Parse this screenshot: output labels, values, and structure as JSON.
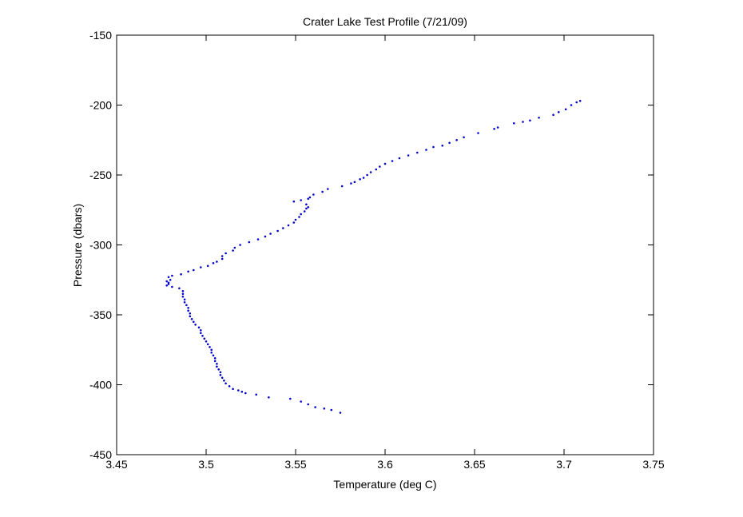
{
  "chart_data": {
    "type": "scatter",
    "title": "Crater Lake Test Profile (7/21/09)",
    "xlabel": "Temperature (deg C)",
    "ylabel": "Pressure (dbars)",
    "xlim": [
      3.45,
      3.75
    ],
    "ylim": [
      -450,
      -150
    ],
    "xticks": [
      "3.45",
      "3.5",
      "3.55",
      "3.6",
      "3.65",
      "3.7",
      "3.75"
    ],
    "yticks": [
      "-150",
      "-200",
      "-250",
      "-300",
      "-350",
      "-400",
      "-450"
    ],
    "grid": false,
    "marker_color": "#0000cc",
    "series": [
      {
        "x": [
          3.709,
          3.707,
          3.704,
          3.701,
          3.697,
          3.694,
          3.686,
          3.681,
          3.677,
          3.672,
          3.663,
          3.661,
          3.652,
          3.644,
          3.64,
          3.636,
          3.632,
          3.627,
          3.623,
          3.618,
          3.613,
          3.608,
          3.604,
          3.6,
          3.597,
          3.595,
          3.592,
          3.59,
          3.588,
          3.586,
          3.583,
          3.581,
          3.576,
          3.568,
          3.565,
          3.56,
          3.558,
          3.557,
          3.553,
          3.549,
          3.556,
          3.557,
          3.556,
          3.555,
          3.553,
          3.552,
          3.55,
          3.549,
          3.546,
          3.543,
          3.54,
          3.536,
          3.533,
          3.529,
          3.524,
          3.519,
          3.516,
          3.515,
          3.511,
          3.509,
          3.509,
          3.506,
          3.504,
          3.501,
          3.497,
          3.493,
          3.49,
          3.486,
          3.481,
          3.479,
          3.48,
          3.478,
          3.479,
          3.479,
          3.478,
          3.481,
          3.485,
          3.487,
          3.487,
          3.487,
          3.488,
          3.488,
          3.489,
          3.49,
          3.49,
          3.491,
          3.491,
          3.492,
          3.493,
          3.494,
          3.496,
          3.497,
          3.497,
          3.498,
          3.499,
          3.5,
          3.501,
          3.502,
          3.503,
          3.503,
          3.504,
          3.505,
          3.505,
          3.506,
          3.506,
          3.507,
          3.508,
          3.508,
          3.509,
          3.51,
          3.511,
          3.513,
          3.515,
          3.518,
          3.52,
          3.522,
          3.528,
          3.535,
          3.547,
          3.553,
          3.557,
          3.561,
          3.566,
          3.57,
          3.575
        ],
        "y": [
          -197,
          -198,
          -200,
          -203,
          -205,
          -207,
          -209,
          -211,
          -212,
          -213,
          -216,
          -217,
          -220,
          -223,
          -225,
          -227,
          -229,
          -230,
          -232,
          -234,
          -236,
          -238,
          -240,
          -242,
          -244,
          -246,
          -248,
          -250,
          -252,
          -253,
          -255,
          -256,
          -258,
          -260,
          -262,
          -264,
          -266,
          -267,
          -268,
          -269,
          -271,
          -273,
          -274,
          -276,
          -278,
          -280,
          -282,
          -284,
          -286,
          -288,
          -290,
          -292,
          -294,
          -296,
          -298,
          -300,
          -302,
          -304,
          -306,
          -308,
          -310,
          -312,
          -313,
          -315,
          -316,
          -318,
          -319,
          -321,
          -322,
          -323,
          -325,
          -326,
          -327,
          -328,
          -329,
          -330,
          -331,
          -333,
          -335,
          -337,
          -339,
          -341,
          -343,
          -345,
          -347,
          -349,
          -351,
          -353,
          -355,
          -357,
          -359,
          -361,
          -363,
          -365,
          -367,
          -369,
          -371,
          -373,
          -375,
          -377,
          -379,
          -381,
          -383,
          -385,
          -387,
          -389,
          -391,
          -393,
          -395,
          -397,
          -399,
          -401,
          -403,
          -404,
          -405,
          -406,
          -407,
          -409,
          -410,
          -412,
          -414,
          -416,
          -417,
          -418,
          -420
        ]
      }
    ]
  }
}
